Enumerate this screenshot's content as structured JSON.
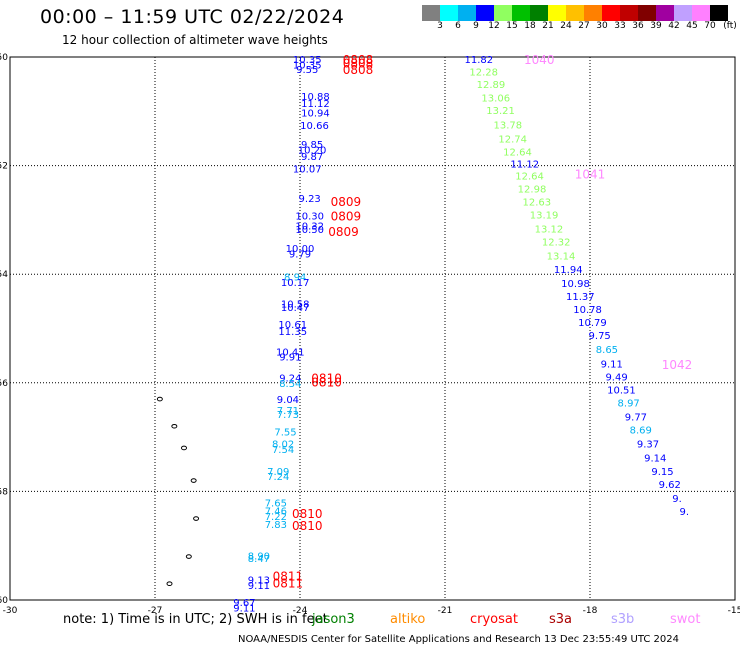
{
  "title": "00:00 – 11:59 UTC 02/22/2024",
  "subtitle": "12 hour collection of altimeter wave heights",
  "colorbar": {
    "colors": [
      "#808080",
      "#00ffff",
      "#00b0f0",
      "#0000ff",
      "#90ff60",
      "#00c000",
      "#008000",
      "#ffff00",
      "#ffc000",
      "#ff8000",
      "#ff0000",
      "#c00000",
      "#800000",
      "#a000a0",
      "#c0a0ff",
      "#ff80ff",
      "#000000"
    ],
    "labels": [
      "3",
      "6",
      "9",
      "12",
      "15",
      "18",
      "21",
      "24",
      "27",
      "30",
      "33",
      "36",
      "39",
      "42",
      "45",
      "70",
      "(ft)"
    ]
  },
  "axes": {
    "lon_ticks": [
      "-30",
      "-27",
      "-24",
      "-21",
      "-18",
      "-15"
    ],
    "lat_ticks": [
      "-50",
      "-52",
      "-54",
      "-56",
      "-58",
      "-60"
    ]
  },
  "note": "note:  1) Time is in UTC; 2) SWH is in feet",
  "missions": [
    {
      "name": "jason3",
      "color": "#008000"
    },
    {
      "name": "altiko",
      "color": "#ff8c00"
    },
    {
      "name": "cryosat",
      "color": "#ff0000"
    },
    {
      "name": "s3a",
      "color": "#aa0000"
    },
    {
      "name": "s3b",
      "color": "#b0a0ff"
    },
    {
      "name": "swot",
      "color": "#ff88ff"
    }
  ],
  "footer": "NOAA/NESDIS Center for Satellite Applications and Research    13 Dec 23:55:49 UTC 2024",
  "track1": {
    "heights": [
      {
        "v": "10.35",
        "lat": -50.04,
        "lon": -23.85,
        "c": "#0000ff"
      },
      {
        "v": "10.35",
        "lat": -50.14,
        "lon": -23.85,
        "c": "#0000ff"
      },
      {
        "v": "9.55",
        "lat": -50.22,
        "lon": -23.85,
        "c": "#0000ff"
      },
      {
        "v": "10.88",
        "lat": -50.72,
        "lon": -23.68,
        "c": "#0000ff"
      },
      {
        "v": "11.12",
        "lat": -50.85,
        "lon": -23.68,
        "c": "#0000ff"
      },
      {
        "v": "10.94",
        "lat": -51.02,
        "lon": -23.68,
        "c": "#0000ff"
      },
      {
        "v": "10.66",
        "lat": -51.25,
        "lon": -23.7,
        "c": "#0000ff"
      },
      {
        "v": "9.85",
        "lat": -51.6,
        "lon": -23.75,
        "c": "#0000ff"
      },
      {
        "v": "10.20",
        "lat": -51.7,
        "lon": -23.75,
        "c": "#0000ff"
      },
      {
        "v": "9.87",
        "lat": -51.82,
        "lon": -23.75,
        "c": "#0000ff"
      },
      {
        "v": "10.07",
        "lat": -52.05,
        "lon": -23.85,
        "c": "#0000ff"
      },
      {
        "v": "9.23",
        "lat": -52.6,
        "lon": -23.8,
        "c": "#0000ff"
      },
      {
        "v": "10.30",
        "lat": -52.92,
        "lon": -23.8,
        "c": "#0000ff"
      },
      {
        "v": "10.32",
        "lat": -53.1,
        "lon": -23.8,
        "c": "#0000ff"
      },
      {
        "v": "10.50",
        "lat": -53.17,
        "lon": -23.8,
        "c": "#0000ff"
      },
      {
        "v": "10.00",
        "lat": -53.52,
        "lon": -24.0,
        "c": "#0000ff"
      },
      {
        "v": "9.79",
        "lat": -53.62,
        "lon": -24.0,
        "c": "#0000ff"
      },
      {
        "v": "8.94",
        "lat": -54.04,
        "lon": -24.1,
        "c": "#00b0f0"
      },
      {
        "v": "10.17",
        "lat": -54.14,
        "lon": -24.1,
        "c": "#0000ff"
      },
      {
        "v": "10.58",
        "lat": -54.54,
        "lon": -24.1,
        "c": "#0000ff"
      },
      {
        "v": "10.47",
        "lat": -54.6,
        "lon": -24.1,
        "c": "#0000ff"
      },
      {
        "v": "10.61",
        "lat": -54.92,
        "lon": -24.15,
        "c": "#0000ff"
      },
      {
        "v": "11.35",
        "lat": -55.05,
        "lon": -24.15,
        "c": "#0000ff"
      },
      {
        "v": "10.41",
        "lat": -55.42,
        "lon": -24.2,
        "c": "#0000ff"
      },
      {
        "v": "9.91",
        "lat": -55.52,
        "lon": -24.2,
        "c": "#0000ff"
      },
      {
        "v": "9.24",
        "lat": -55.9,
        "lon": -24.2,
        "c": "#0000ff"
      },
      {
        "v": "8.54",
        "lat": -56.0,
        "lon": -24.2,
        "c": "#00b0f0"
      },
      {
        "v": "9.04",
        "lat": -56.3,
        "lon": -24.25,
        "c": "#0000ff"
      },
      {
        "v": "7.71",
        "lat": -56.5,
        "lon": -24.25,
        "c": "#00b0f0"
      },
      {
        "v": "7.73",
        "lat": -56.57,
        "lon": -24.25,
        "c": "#00b0f0"
      },
      {
        "v": "7.55",
        "lat": -56.9,
        "lon": -24.3,
        "c": "#00b0f0"
      },
      {
        "v": "8.02",
        "lat": -57.12,
        "lon": -24.35,
        "c": "#00b0f0"
      },
      {
        "v": "7.54",
        "lat": -57.22,
        "lon": -24.35,
        "c": "#00b0f0"
      },
      {
        "v": "7.09",
        "lat": -57.62,
        "lon": -24.45,
        "c": "#00b0f0"
      },
      {
        "v": "7.24",
        "lat": -57.72,
        "lon": -24.45,
        "c": "#00b0f0"
      },
      {
        "v": "7.65",
        "lat": -58.2,
        "lon": -24.5,
        "c": "#00b0f0"
      },
      {
        "v": "7.46",
        "lat": -58.35,
        "lon": -24.5,
        "c": "#00b0f0"
      },
      {
        "v": "7.22",
        "lat": -58.45,
        "lon": -24.5,
        "c": "#00b0f0"
      },
      {
        "v": "7.83",
        "lat": -58.6,
        "lon": -24.5,
        "c": "#00b0f0"
      },
      {
        "v": "8.90",
        "lat": -59.18,
        "lon": -24.85,
        "c": "#00b0f0"
      },
      {
        "v": "8.47",
        "lat": -59.23,
        "lon": -24.85,
        "c": "#00b0f0"
      },
      {
        "v": "9.13",
        "lat": -59.62,
        "lon": -24.85,
        "c": "#0000ff"
      },
      {
        "v": "9.11",
        "lat": -59.72,
        "lon": -24.85,
        "c": "#0000ff"
      },
      {
        "v": "9.67",
        "lat": -60.04,
        "lon": -25.15,
        "c": "#0000ff"
      },
      {
        "v": "9.11",
        "lat": -60.14,
        "lon": -25.15,
        "c": "#0000ff"
      }
    ],
    "time_labels": [
      {
        "t": "0808",
        "lat": -50.04,
        "lon": -22.8
      },
      {
        "t": "0808",
        "lat": -50.1,
        "lon": -22.8
      },
      {
        "t": "0808",
        "lat": -50.22,
        "lon": -22.8
      },
      {
        "t": "0809",
        "lat": -52.65,
        "lon": -23.05
      },
      {
        "t": "0809",
        "lat": -52.92,
        "lon": -23.05
      },
      {
        "t": "0809",
        "lat": -53.2,
        "lon": -23.1
      },
      {
        "t": "0810",
        "lat": -55.9,
        "lon": -23.45
      },
      {
        "t": "0810",
        "lat": -55.98,
        "lon": -23.45
      },
      {
        "t": "0810",
        "lat": -58.4,
        "lon": -23.85
      },
      {
        "t": "0810",
        "lat": -58.62,
        "lon": -23.85
      },
      {
        "t": "0811",
        "lat": -59.55,
        "lon": -24.25
      },
      {
        "t": "0811",
        "lat": -59.68,
        "lon": -24.25
      }
    ]
  },
  "track2": {
    "heights": [
      {
        "v": "11.82",
        "lat": -50.04,
        "lon": -20.3,
        "c": "#0000ff"
      },
      {
        "v": "12.28",
        "lat": -50.27,
        "lon": -20.2,
        "c": "#90ff60"
      },
      {
        "v": "12.89",
        "lat": -50.5,
        "lon": -20.05,
        "c": "#90ff60"
      },
      {
        "v": "13.06",
        "lat": -50.75,
        "lon": -19.95,
        "c": "#90ff60"
      },
      {
        "v": "13.21",
        "lat": -50.98,
        "lon": -19.85,
        "c": "#90ff60"
      },
      {
        "v": "13.78",
        "lat": -51.24,
        "lon": -19.7,
        "c": "#90ff60"
      },
      {
        "v": "12.74",
        "lat": -51.5,
        "lon": -19.6,
        "c": "#90ff60"
      },
      {
        "v": "12.64",
        "lat": -51.74,
        "lon": -19.5,
        "c": "#90ff60"
      },
      {
        "v": "11.12",
        "lat": -51.96,
        "lon": -19.35,
        "c": "#0000ff"
      },
      {
        "v": "12.64",
        "lat": -52.18,
        "lon": -19.25,
        "c": "#90ff60"
      },
      {
        "v": "12.98",
        "lat": -52.42,
        "lon": -19.2,
        "c": "#90ff60"
      },
      {
        "v": "12.63",
        "lat": -52.66,
        "lon": -19.1,
        "c": "#90ff60"
      },
      {
        "v": "13.19",
        "lat": -52.9,
        "lon": -18.95,
        "c": "#90ff60"
      },
      {
        "v": "13.12",
        "lat": -53.16,
        "lon": -18.85,
        "c": "#90ff60"
      },
      {
        "v": "12.32",
        "lat": -53.4,
        "lon": -18.7,
        "c": "#90ff60"
      },
      {
        "v": "13.14",
        "lat": -53.66,
        "lon": -18.6,
        "c": "#90ff60"
      },
      {
        "v": "11.94",
        "lat": -53.9,
        "lon": -18.45,
        "c": "#0000ff"
      },
      {
        "v": "10.98",
        "lat": -54.16,
        "lon": -18.3,
        "c": "#0000ff"
      },
      {
        "v": "11.37",
        "lat": -54.4,
        "lon": -18.2,
        "c": "#0000ff"
      },
      {
        "v": "10.78",
        "lat": -54.64,
        "lon": -18.05,
        "c": "#0000ff"
      },
      {
        "v": "10.79",
        "lat": -54.88,
        "lon": -17.95,
        "c": "#0000ff"
      },
      {
        "v": "9.75",
        "lat": -55.12,
        "lon": -17.8,
        "c": "#0000ff"
      },
      {
        "v": "8.65",
        "lat": -55.38,
        "lon": -17.65,
        "c": "#00b0f0"
      },
      {
        "v": "9.11",
        "lat": -55.64,
        "lon": -17.55,
        "c": "#0000ff"
      },
      {
        "v": "9.49",
        "lat": -55.88,
        "lon": -17.45,
        "c": "#0000ff"
      },
      {
        "v": "10.51",
        "lat": -56.12,
        "lon": -17.35,
        "c": "#0000ff"
      },
      {
        "v": "8.97",
        "lat": -56.36,
        "lon": -17.2,
        "c": "#00b0f0"
      },
      {
        "v": "9.77",
        "lat": -56.62,
        "lon": -17.05,
        "c": "#0000ff"
      },
      {
        "v": "8.69",
        "lat": -56.86,
        "lon": -16.95,
        "c": "#00b0f0"
      },
      {
        "v": "9.37",
        "lat": -57.12,
        "lon": -16.8,
        "c": "#0000ff"
      },
      {
        "v": "9.14",
        "lat": -57.38,
        "lon": -16.65,
        "c": "#0000ff"
      },
      {
        "v": "9.15",
        "lat": -57.62,
        "lon": -16.5,
        "c": "#0000ff"
      },
      {
        "v": "9.62",
        "lat": -57.86,
        "lon": -16.35,
        "c": "#0000ff"
      },
      {
        "v": "9.",
        "lat": -58.12,
        "lon": -16.2,
        "c": "#0000ff"
      },
      {
        "v": "9.",
        "lat": -58.36,
        "lon": -16.05,
        "c": "#0000ff"
      }
    ],
    "time_labels": [
      {
        "t": "1040",
        "lat": -50.04,
        "lon": -19.05
      },
      {
        "t": "1041",
        "lat": -52.15,
        "lon": -18.0
      },
      {
        "t": "1042",
        "lat": -55.65,
        "lon": -16.2
      }
    ]
  },
  "islands": [
    {
      "lon": -26.9,
      "lat": -56.3
    },
    {
      "lon": -26.6,
      "lat": -56.8
    },
    {
      "lon": -26.4,
      "lat": -57.2
    },
    {
      "lon": -26.2,
      "lat": -57.8
    },
    {
      "lon": -26.15,
      "lat": -58.5
    },
    {
      "lon": -26.3,
      "lat": -59.2
    },
    {
      "lon": -26.7,
      "lat": -59.7
    }
  ]
}
